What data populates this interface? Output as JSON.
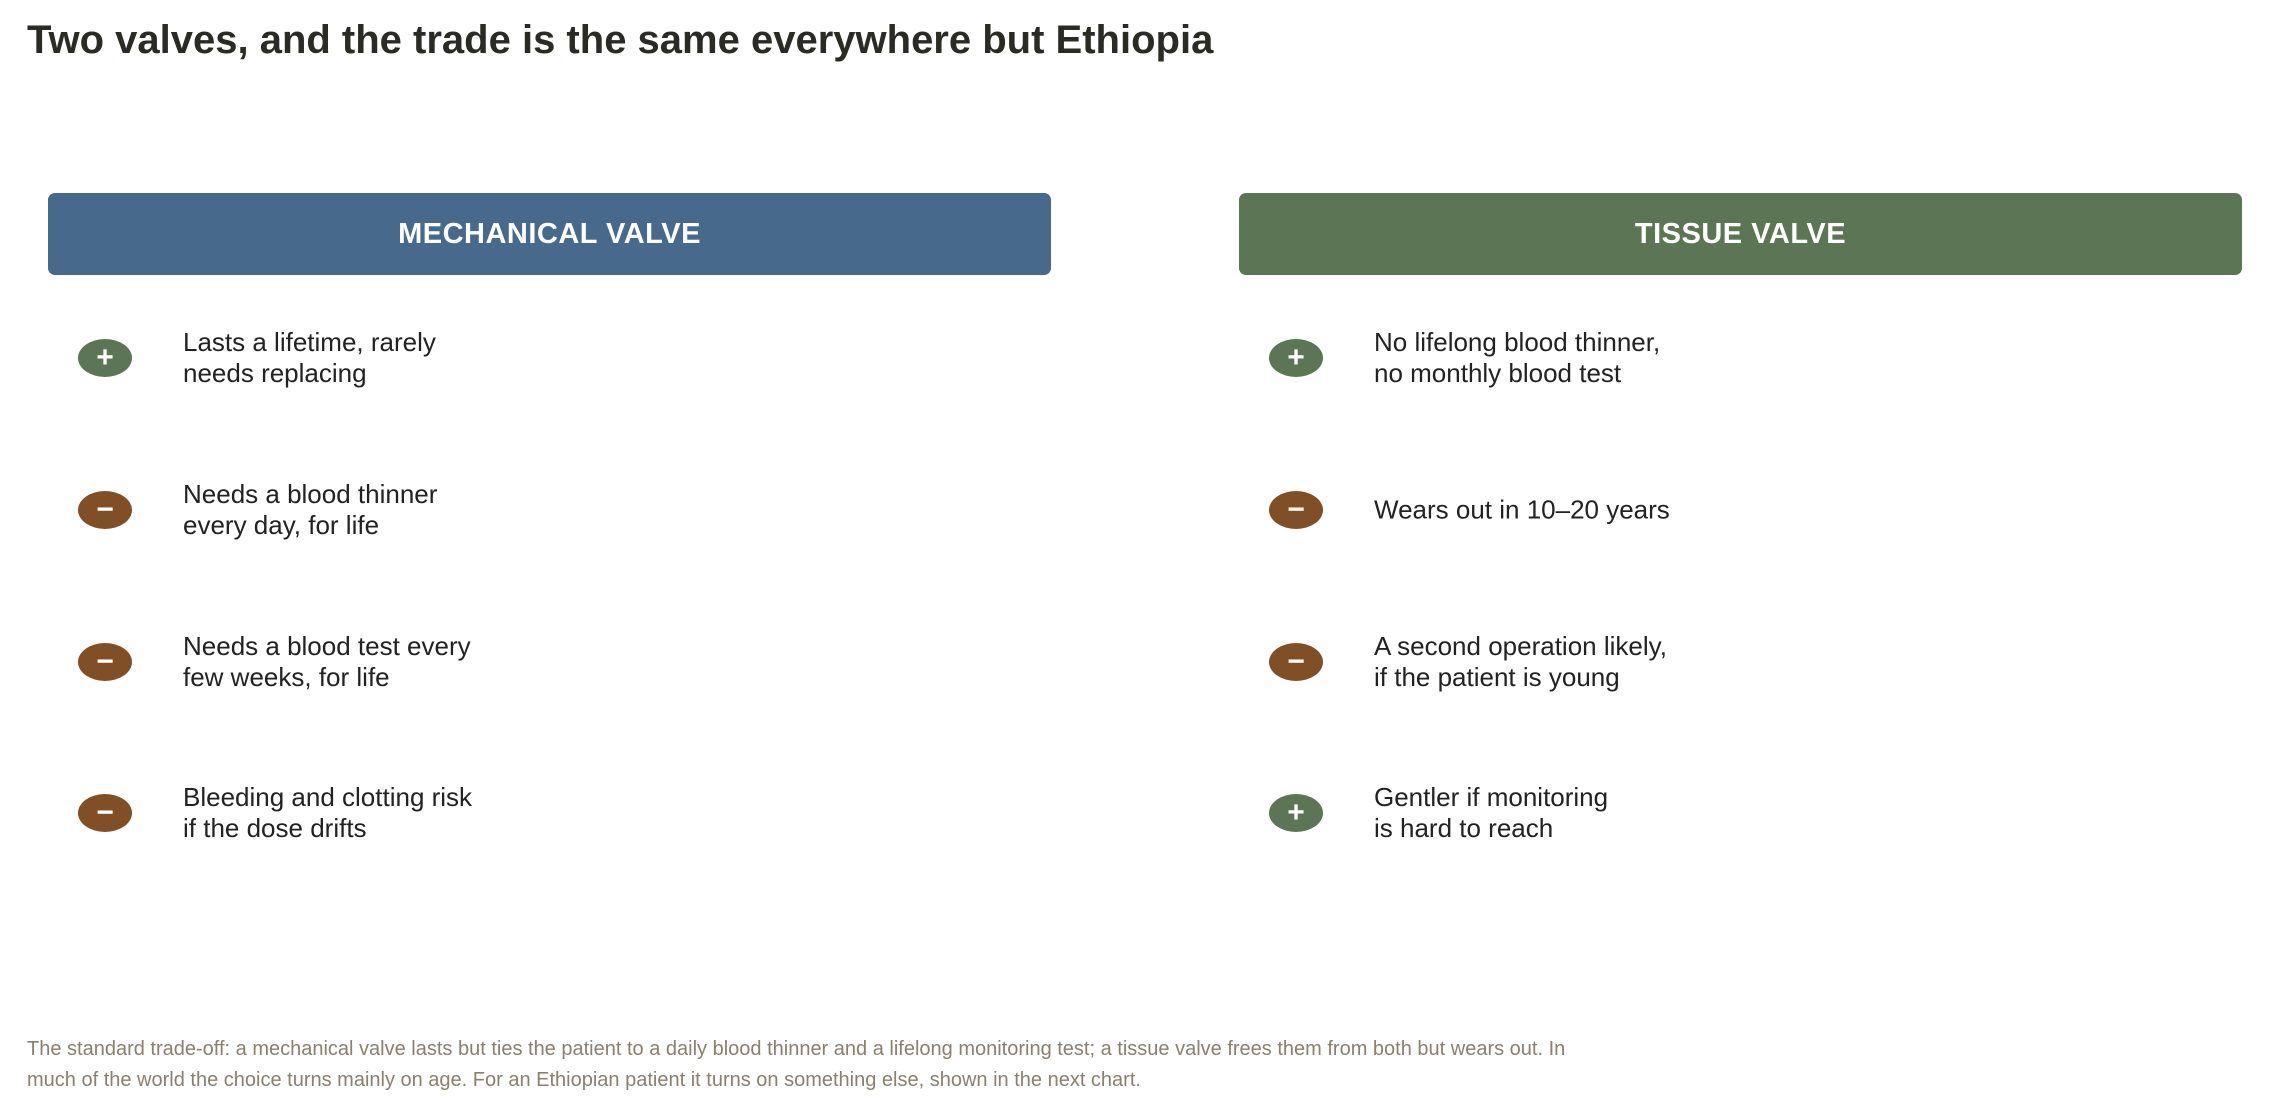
{
  "title": "Two valves, and the trade is the same everywhere but Ethiopia",
  "columns": [
    {
      "header": "MECHANICAL VALVE",
      "color": "#476a8c",
      "items": [
        {
          "sign": "+",
          "kind": "pro",
          "lines": [
            "Lasts a lifetime, rarely",
            "needs replacing"
          ]
        },
        {
          "sign": "−",
          "kind": "con",
          "lines": [
            "Needs a blood thinner",
            "every day, for life"
          ]
        },
        {
          "sign": "−",
          "kind": "con",
          "lines": [
            "Needs a blood test every",
            "few weeks, for life"
          ]
        },
        {
          "sign": "−",
          "kind": "con",
          "lines": [
            "Bleeding and clotting risk",
            "if the dose drifts"
          ]
        }
      ]
    },
    {
      "header": "TISSUE VALVE",
      "color": "#5c7555",
      "items": [
        {
          "sign": "+",
          "kind": "pro",
          "lines": [
            "No lifelong blood thinner,",
            "no monthly blood test"
          ]
        },
        {
          "sign": "−",
          "kind": "con",
          "lines": [
            "Wears out in 10–20 years"
          ]
        },
        {
          "sign": "−",
          "kind": "con",
          "lines": [
            "A second operation likely,",
            "if the patient is young"
          ]
        },
        {
          "sign": "+",
          "kind": "pro",
          "lines": [
            "Gentler if monitoring",
            "is hard to reach"
          ]
        }
      ]
    }
  ],
  "footnote": "The standard trade-off: a mechanical valve lasts but ties the patient to a daily blood thinner and a lifelong monitoring test; a tissue valve frees them from both but wears out. In much of the world the choice turns mainly on age. For an Ethiopian patient it turns on something else, shown in the next chart."
}
